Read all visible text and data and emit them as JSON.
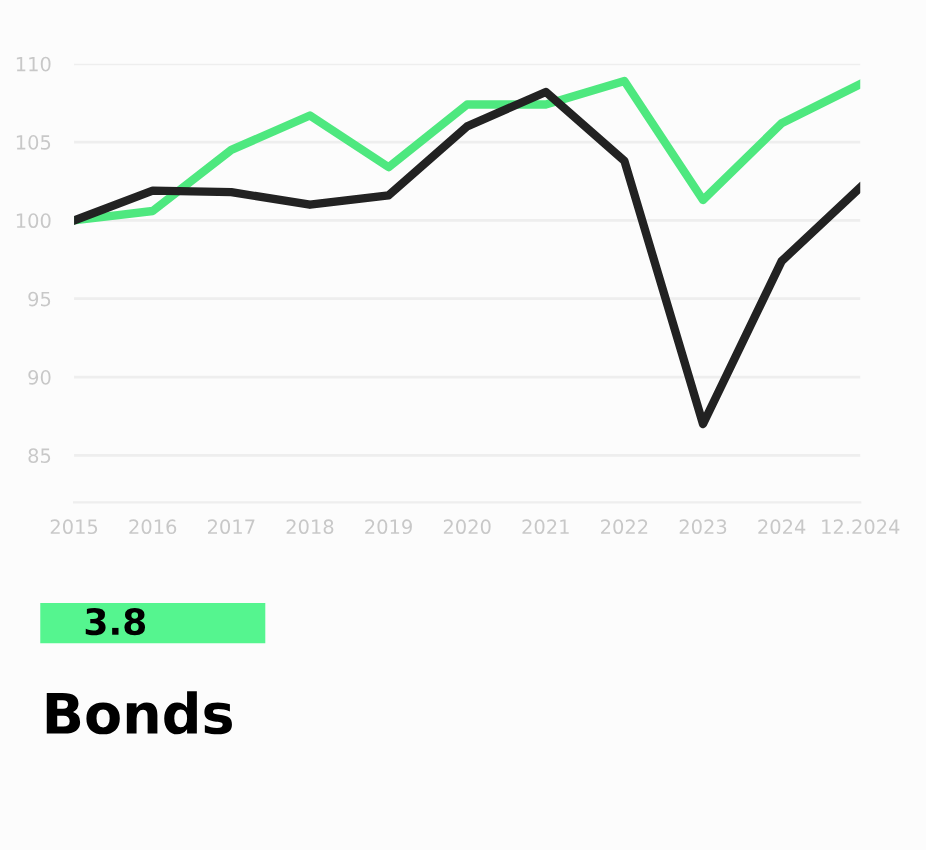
{
  "chart_data": {
    "type": "line",
    "categories": [
      "2015",
      "2016",
      "2017",
      "2018",
      "2019",
      "2020",
      "2021",
      "2022",
      "2023",
      "2024",
      "12.2024"
    ],
    "series": [
      {
        "color": "#4ee87f",
        "values": [
          100,
          100.6,
          104.5,
          106.7,
          103.4,
          107.4,
          107.4,
          108.9,
          101.3,
          106.2,
          108.7
        ]
      },
      {
        "color": "#222222",
        "values": [
          100,
          101.9,
          101.8,
          101.0,
          101.6,
          106.0,
          108.2,
          103.8,
          87.0,
          97.4,
          102.1
        ]
      }
    ],
    "ylim": [
      82,
      110
    ],
    "yticks": [
      85,
      90,
      95,
      100,
      105,
      110
    ],
    "grid": "y",
    "legend": false,
    "marker": "none",
    "line_style": "solid",
    "annotations": [
      "3.8",
      "Bonds"
    ]
  }
}
